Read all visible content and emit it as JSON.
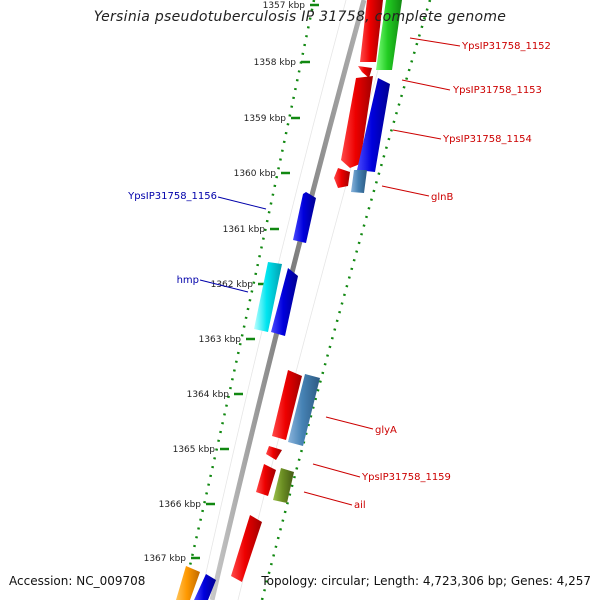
{
  "title": "Yersinia pseudotuberculosis IP 31758, complete genome",
  "footer": {
    "accession_label": "Accession:",
    "accession": "NC_009708",
    "topology_label": "Topology:",
    "topology": "circular",
    "length_label": "Length:",
    "length": "4,723,306 bp",
    "genes_label": "Genes:",
    "genes": "4,257"
  },
  "ruler": {
    "ticks": [
      {
        "label": "1357 kbp"
      },
      {
        "label": "1358 kbp"
      },
      {
        "label": "1359 kbp"
      },
      {
        "label": "1360 kbp"
      },
      {
        "label": "1361 kbp"
      },
      {
        "label": "1362 kbp"
      },
      {
        "label": "1363 kbp"
      },
      {
        "label": "1364 kbp"
      },
      {
        "label": "1365 kbp"
      },
      {
        "label": "1366 kbp"
      },
      {
        "label": "1367 kbp"
      }
    ]
  },
  "labels": {
    "right": [
      {
        "text": "YpsIP31758_1152",
        "color": "#cc0000"
      },
      {
        "text": "YpsIP31758_1153",
        "color": "#cc0000"
      },
      {
        "text": "YpsIP31758_1154",
        "color": "#cc0000"
      },
      {
        "text": "glnB",
        "color": "#cc0000"
      },
      {
        "text": "glyA",
        "color": "#cc0000"
      },
      {
        "text": "YpsIP31758_1159",
        "color": "#cc0000"
      },
      {
        "text": "ail",
        "color": "#cc0000"
      }
    ],
    "left": [
      {
        "text": "YpsIP31758_1156",
        "color": "#0000aa"
      },
      {
        "text": "hmp",
        "color": "#0000aa"
      }
    ]
  },
  "feature_colors": {
    "red": "#ee0000",
    "blue": "#0000dd",
    "green": "#22cc22",
    "cyan": "#00e5f0",
    "steelblue": "#4682b4",
    "olive": "#6b8e23",
    "orange": "#ff9900"
  }
}
